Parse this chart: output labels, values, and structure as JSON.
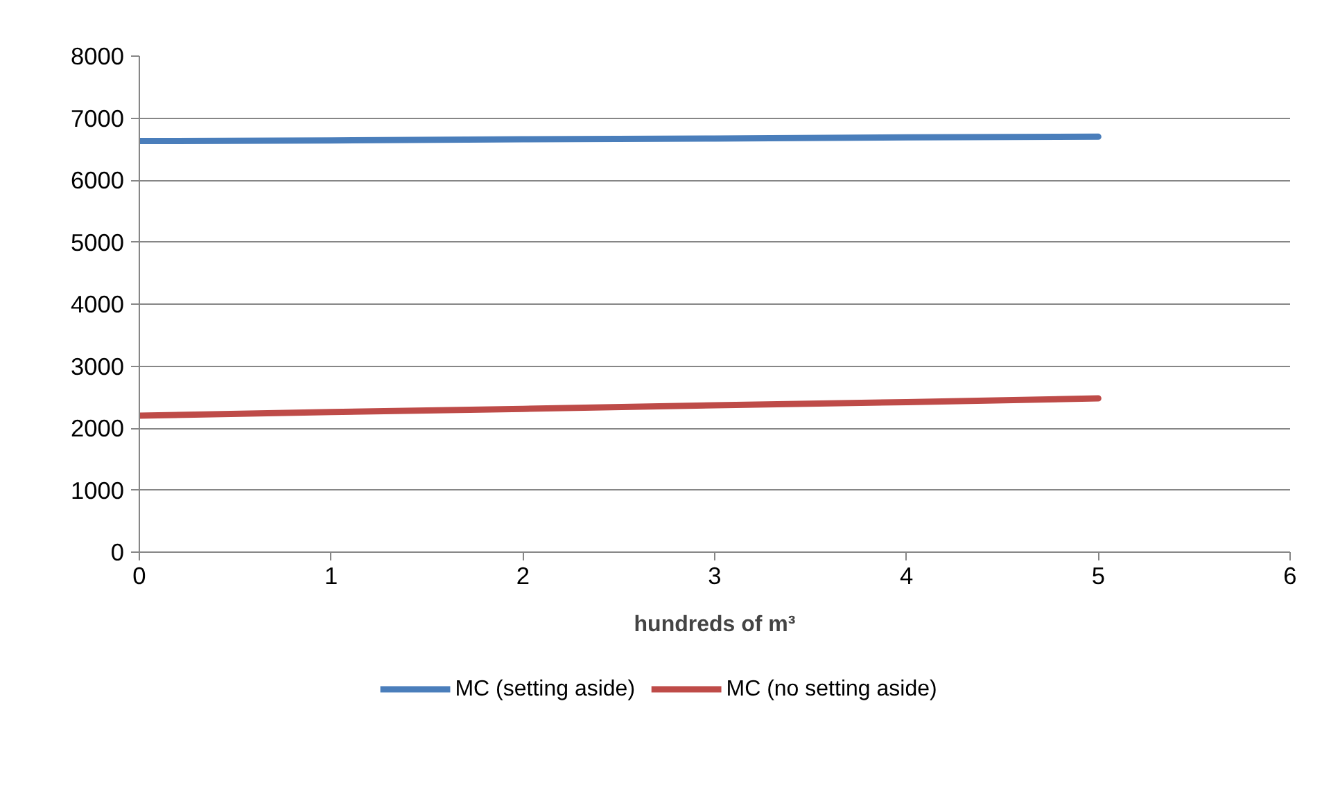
{
  "chart_data": {
    "type": "line",
    "xlabel": "hundreds of m³",
    "x": [
      0,
      1,
      2,
      3,
      4,
      5
    ],
    "series": [
      {
        "name": "MC (setting aside)",
        "color": "#4a7ebb",
        "values": [
          6630,
          6640,
          6660,
          6670,
          6690,
          6700
        ]
      },
      {
        "name": "MC (no setting aside)",
        "color": "#be4b48",
        "values": [
          2200,
          2260,
          2310,
          2370,
          2420,
          2480
        ]
      }
    ],
    "xlim": [
      0,
      6
    ],
    "xticks": [
      0,
      1,
      2,
      3,
      4,
      5,
      6
    ],
    "ylim": [
      0,
      8000
    ],
    "yticks": [
      0,
      1000,
      2000,
      3000,
      4000,
      5000,
      6000,
      7000,
      8000
    ],
    "grid": "y",
    "legend": "bottom",
    "marker": "none",
    "line_style": "solid"
  }
}
